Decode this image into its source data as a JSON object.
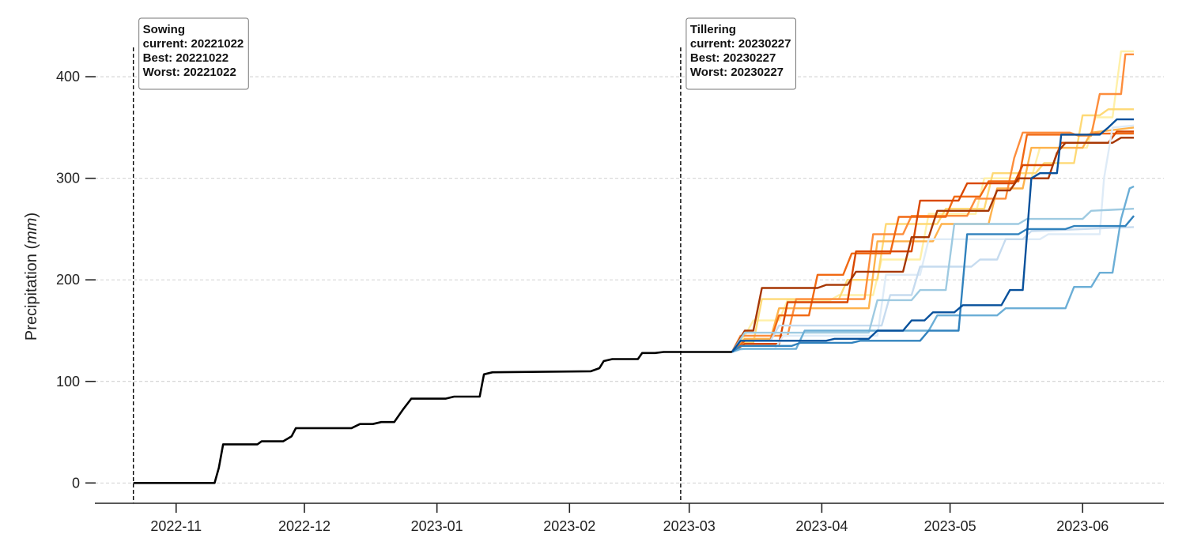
{
  "chart_data": {
    "type": "line",
    "title": "",
    "xlabel": "",
    "ylabel_prefix": "Precipitation (",
    "ylabel_unit": "mm",
    "ylabel_suffix": ")",
    "x_ticks": [
      "2022-11",
      "2022-12",
      "2023-01",
      "2023-02",
      "2023-03",
      "2023-04",
      "2023-05",
      "2023-06"
    ],
    "y_ticks": [
      0,
      100,
      200,
      300,
      400
    ],
    "xlim": [
      "2022-10-13",
      "2023-06-20"
    ],
    "ylim": [
      -20,
      460
    ],
    "grid": "y-dashed",
    "annotations": [
      {
        "date": "2022-10-22",
        "lines": [
          "Sowing",
          "current: 20221022",
          "Best: 20221022",
          "Worst: 20221022"
        ]
      },
      {
        "date": "2023-02-27",
        "lines": [
          "Tillering",
          "current: 20230227",
          "Best: 20230227",
          "Worst: 20230227"
        ]
      }
    ],
    "observed": {
      "color": "#000000",
      "points": [
        [
          "2022-10-22",
          0
        ],
        [
          "2022-11-10",
          0
        ],
        [
          "2022-11-11",
          15
        ],
        [
          "2022-11-12",
          38
        ],
        [
          "2022-11-20",
          38
        ],
        [
          "2022-11-21",
          41
        ],
        [
          "2022-11-26",
          41
        ],
        [
          "2022-11-28",
          46
        ],
        [
          "2022-11-29",
          54
        ],
        [
          "2022-12-12",
          54
        ],
        [
          "2022-12-14",
          58
        ],
        [
          "2022-12-17",
          58
        ],
        [
          "2022-12-19",
          60
        ],
        [
          "2022-12-22",
          60
        ],
        [
          "2022-12-24",
          72
        ],
        [
          "2022-12-26",
          83
        ],
        [
          "2023-01-03",
          83
        ],
        [
          "2023-01-05",
          85
        ],
        [
          "2023-01-11",
          85
        ],
        [
          "2023-01-12",
          107
        ],
        [
          "2023-01-14",
          109
        ],
        [
          "2023-02-06",
          110
        ],
        [
          "2023-02-08",
          113
        ],
        [
          "2023-02-09",
          120
        ],
        [
          "2023-02-11",
          122
        ],
        [
          "2023-02-17",
          122
        ],
        [
          "2023-02-18",
          128
        ],
        [
          "2023-02-21",
          128
        ],
        [
          "2023-02-23",
          129
        ],
        [
          "2023-03-11",
          129
        ]
      ]
    },
    "series": [
      {
        "color": "#fff0a8",
        "points": [
          [
            "2023-03-11",
            129
          ],
          [
            "2023-03-14",
            145
          ],
          [
            "2023-03-16",
            160
          ],
          [
            "2023-03-22",
            160
          ],
          [
            "2023-03-24",
            180
          ],
          [
            "2023-04-03",
            180
          ],
          [
            "2023-04-05",
            185
          ],
          [
            "2023-04-13",
            185
          ],
          [
            "2023-04-15",
            220
          ],
          [
            "2023-04-24",
            220
          ],
          [
            "2023-04-26",
            265
          ],
          [
            "2023-05-07",
            265
          ],
          [
            "2023-05-09",
            300
          ],
          [
            "2023-05-20",
            300
          ],
          [
            "2023-05-22",
            330
          ],
          [
            "2023-06-02",
            330
          ],
          [
            "2023-06-04",
            360
          ],
          [
            "2023-06-08",
            360
          ],
          [
            "2023-06-10",
            425
          ],
          [
            "2023-06-13",
            425
          ]
        ]
      },
      {
        "color": "#fed976",
        "points": [
          [
            "2023-03-11",
            129
          ],
          [
            "2023-03-13",
            138
          ],
          [
            "2023-03-16",
            138
          ],
          [
            "2023-03-18",
            181
          ],
          [
            "2023-04-05",
            181
          ],
          [
            "2023-04-07",
            200
          ],
          [
            "2023-04-14",
            200
          ],
          [
            "2023-04-16",
            255
          ],
          [
            "2023-04-28",
            255
          ],
          [
            "2023-04-30",
            270
          ],
          [
            "2023-05-09",
            270
          ],
          [
            "2023-05-11",
            305
          ],
          [
            "2023-05-21",
            305
          ],
          [
            "2023-05-23",
            315
          ],
          [
            "2023-05-30",
            315
          ],
          [
            "2023-06-01",
            362
          ],
          [
            "2023-06-05",
            362
          ],
          [
            "2023-06-07",
            368
          ],
          [
            "2023-06-13",
            368
          ]
        ]
      },
      {
        "color": "#feb24c",
        "points": [
          [
            "2023-03-11",
            129
          ],
          [
            "2023-03-14",
            142
          ],
          [
            "2023-03-20",
            142
          ],
          [
            "2023-03-22",
            172
          ],
          [
            "2023-04-12",
            172
          ],
          [
            "2023-04-14",
            238
          ],
          [
            "2023-04-27",
            238
          ],
          [
            "2023-04-29",
            255
          ],
          [
            "2023-05-10",
            255
          ],
          [
            "2023-05-12",
            290
          ],
          [
            "2023-05-18",
            290
          ],
          [
            "2023-05-20",
            330
          ],
          [
            "2023-06-01",
            330
          ],
          [
            "2023-06-03",
            345
          ],
          [
            "2023-06-13",
            350
          ]
        ]
      },
      {
        "color": "#fd8d3c",
        "points": [
          [
            "2023-03-11",
            129
          ],
          [
            "2023-03-13",
            145
          ],
          [
            "2023-03-24",
            145
          ],
          [
            "2023-03-26",
            181
          ],
          [
            "2023-04-11",
            181
          ],
          [
            "2023-04-13",
            245
          ],
          [
            "2023-04-20",
            245
          ],
          [
            "2023-04-22",
            263
          ],
          [
            "2023-05-05",
            263
          ],
          [
            "2023-05-07",
            280
          ],
          [
            "2023-05-14",
            280
          ],
          [
            "2023-05-16",
            320
          ],
          [
            "2023-05-18",
            345
          ],
          [
            "2023-05-29",
            345
          ],
          [
            "2023-05-31",
            342
          ],
          [
            "2023-06-03",
            342
          ],
          [
            "2023-06-05",
            383
          ],
          [
            "2023-06-10",
            383
          ],
          [
            "2023-06-11",
            422
          ],
          [
            "2023-06-13",
            422
          ]
        ]
      },
      {
        "color": "#f16913",
        "points": [
          [
            "2023-03-11",
            129
          ],
          [
            "2023-03-14",
            140
          ],
          [
            "2023-03-20",
            140
          ],
          [
            "2023-03-22",
            165
          ],
          [
            "2023-03-29",
            165
          ],
          [
            "2023-03-31",
            205
          ],
          [
            "2023-04-06",
            205
          ],
          [
            "2023-04-08",
            226
          ],
          [
            "2023-04-17",
            226
          ],
          [
            "2023-04-19",
            262
          ],
          [
            "2023-04-30",
            262
          ],
          [
            "2023-05-02",
            282
          ],
          [
            "2023-05-08",
            282
          ],
          [
            "2023-05-10",
            297
          ],
          [
            "2023-05-17",
            297
          ],
          [
            "2023-05-19",
            343
          ],
          [
            "2023-06-02",
            343
          ],
          [
            "2023-06-04",
            344
          ],
          [
            "2023-06-13",
            344
          ]
        ]
      },
      {
        "color": "#d94801",
        "points": [
          [
            "2023-03-11",
            129
          ],
          [
            "2023-03-14",
            137
          ],
          [
            "2023-03-22",
            137
          ],
          [
            "2023-03-24",
            178
          ],
          [
            "2023-04-07",
            178
          ],
          [
            "2023-04-09",
            228
          ],
          [
            "2023-04-22",
            228
          ],
          [
            "2023-04-24",
            278
          ],
          [
            "2023-05-03",
            278
          ],
          [
            "2023-05-05",
            295
          ],
          [
            "2023-05-16",
            295
          ],
          [
            "2023-05-18",
            313
          ],
          [
            "2023-05-25",
            313
          ],
          [
            "2023-05-27",
            335
          ],
          [
            "2023-06-07",
            335
          ],
          [
            "2023-06-09",
            346
          ],
          [
            "2023-06-13",
            346
          ]
        ]
      },
      {
        "color": "#a63603",
        "points": [
          [
            "2023-03-11",
            129
          ],
          [
            "2023-03-14",
            150
          ],
          [
            "2023-03-16",
            150
          ],
          [
            "2023-03-18",
            192
          ],
          [
            "2023-03-31",
            192
          ],
          [
            "2023-04-02",
            195
          ],
          [
            "2023-04-07",
            195
          ],
          [
            "2023-04-09",
            208
          ],
          [
            "2023-04-20",
            208
          ],
          [
            "2023-04-22",
            242
          ],
          [
            "2023-04-26",
            242
          ],
          [
            "2023-04-28",
            268
          ],
          [
            "2023-05-10",
            268
          ],
          [
            "2023-05-12",
            288
          ],
          [
            "2023-05-15",
            288
          ],
          [
            "2023-05-17",
            300
          ],
          [
            "2023-05-24",
            300
          ],
          [
            "2023-05-26",
            325
          ],
          [
            "2023-05-28",
            335
          ],
          [
            "2023-06-08",
            335
          ],
          [
            "2023-06-10",
            340
          ],
          [
            "2023-06-13",
            340
          ]
        ]
      },
      {
        "color": "#deebf7",
        "points": [
          [
            "2023-03-11",
            129
          ],
          [
            "2023-03-14",
            132
          ],
          [
            "2023-03-21",
            132
          ],
          [
            "2023-03-23",
            145
          ],
          [
            "2023-04-14",
            145
          ],
          [
            "2023-04-16",
            205
          ],
          [
            "2023-04-24",
            205
          ],
          [
            "2023-04-26",
            240
          ],
          [
            "2023-05-22",
            240
          ],
          [
            "2023-05-24",
            245
          ],
          [
            "2023-06-05",
            245
          ],
          [
            "2023-06-06",
            300
          ],
          [
            "2023-06-08",
            350
          ],
          [
            "2023-06-13",
            352
          ]
        ]
      },
      {
        "color": "#c6dbef",
        "points": [
          [
            "2023-03-11",
            129
          ],
          [
            "2023-03-13",
            140
          ],
          [
            "2023-03-20",
            140
          ],
          [
            "2023-03-22",
            155
          ],
          [
            "2023-04-15",
            155
          ],
          [
            "2023-04-17",
            185
          ],
          [
            "2023-04-22",
            185
          ],
          [
            "2023-04-24",
            213
          ],
          [
            "2023-05-06",
            213
          ],
          [
            "2023-05-08",
            220
          ],
          [
            "2023-05-12",
            220
          ],
          [
            "2023-05-14",
            240
          ],
          [
            "2023-05-18",
            240
          ],
          [
            "2023-05-20",
            248
          ],
          [
            "2023-06-13",
            252
          ]
        ]
      },
      {
        "color": "#9ecae1",
        "points": [
          [
            "2023-03-11",
            129
          ],
          [
            "2023-03-14",
            148
          ],
          [
            "2023-04-12",
            148
          ],
          [
            "2023-04-14",
            180
          ],
          [
            "2023-04-22",
            180
          ],
          [
            "2023-04-24",
            190
          ],
          [
            "2023-04-30",
            190
          ],
          [
            "2023-05-02",
            255
          ],
          [
            "2023-05-17",
            255
          ],
          [
            "2023-05-19",
            260
          ],
          [
            "2023-06-01",
            260
          ],
          [
            "2023-06-03",
            268
          ],
          [
            "2023-06-13",
            270
          ]
        ]
      },
      {
        "color": "#6baed6",
        "points": [
          [
            "2023-03-11",
            129
          ],
          [
            "2023-03-13",
            132
          ],
          [
            "2023-03-26",
            132
          ],
          [
            "2023-03-28",
            150
          ],
          [
            "2023-04-26",
            150
          ],
          [
            "2023-04-28",
            165
          ],
          [
            "2023-05-12",
            165
          ],
          [
            "2023-05-14",
            172
          ],
          [
            "2023-05-28",
            172
          ],
          [
            "2023-05-30",
            193
          ],
          [
            "2023-06-03",
            193
          ],
          [
            "2023-06-05",
            207
          ],
          [
            "2023-06-08",
            207
          ],
          [
            "2023-06-10",
            260
          ],
          [
            "2023-06-12",
            290
          ],
          [
            "2023-06-13",
            292
          ]
        ]
      },
      {
        "color": "#3182bd",
        "points": [
          [
            "2023-03-11",
            129
          ],
          [
            "2023-03-13",
            135
          ],
          [
            "2023-03-25",
            135
          ],
          [
            "2023-03-27",
            138
          ],
          [
            "2023-04-08",
            138
          ],
          [
            "2023-04-10",
            140
          ],
          [
            "2023-04-24",
            140
          ],
          [
            "2023-04-26",
            150
          ],
          [
            "2023-05-03",
            150
          ],
          [
            "2023-05-05",
            245
          ],
          [
            "2023-05-17",
            245
          ],
          [
            "2023-05-19",
            250
          ],
          [
            "2023-05-28",
            250
          ],
          [
            "2023-05-30",
            253
          ],
          [
            "2023-06-11",
            253
          ],
          [
            "2023-06-13",
            263
          ]
        ]
      },
      {
        "color": "#08519c",
        "points": [
          [
            "2023-03-11",
            129
          ],
          [
            "2023-03-13",
            140
          ],
          [
            "2023-04-02",
            140
          ],
          [
            "2023-04-04",
            142
          ],
          [
            "2023-04-12",
            142
          ],
          [
            "2023-04-14",
            150
          ],
          [
            "2023-04-20",
            150
          ],
          [
            "2023-04-22",
            160
          ],
          [
            "2023-04-25",
            160
          ],
          [
            "2023-04-27",
            168
          ],
          [
            "2023-05-02",
            168
          ],
          [
            "2023-05-04",
            175
          ],
          [
            "2023-05-13",
            175
          ],
          [
            "2023-05-15",
            190
          ],
          [
            "2023-05-18",
            190
          ],
          [
            "2023-05-20",
            300
          ],
          [
            "2023-05-22",
            305
          ],
          [
            "2023-05-26",
            305
          ],
          [
            "2023-05-27",
            343
          ],
          [
            "2023-06-05",
            343
          ],
          [
            "2023-06-07",
            350
          ],
          [
            "2023-06-09",
            358
          ],
          [
            "2023-06-13",
            358
          ]
        ]
      }
    ]
  }
}
